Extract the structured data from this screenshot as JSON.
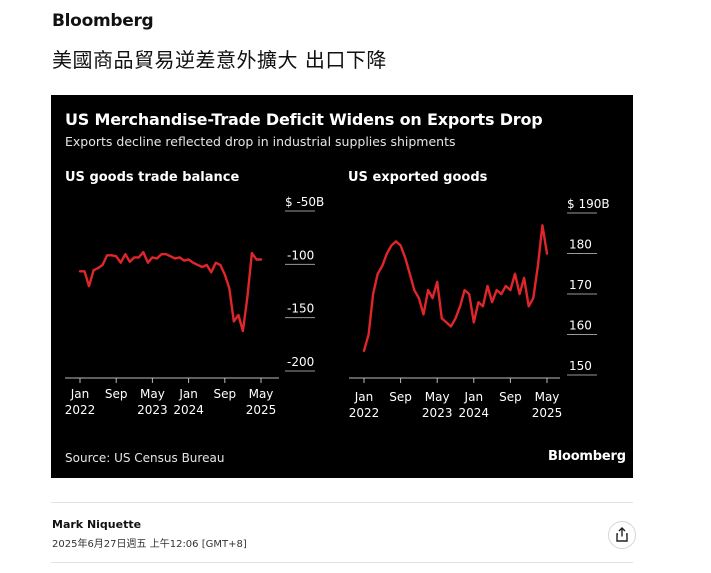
{
  "header": {
    "brand": "Bloomberg",
    "headline": "美國商品貿易逆差意外擴大 出口下降"
  },
  "card": {
    "title": "US Merchandise-Trade Deficit Widens on Exports Drop",
    "subtitle": "Exports decline reflected drop in industrial supplies shipments",
    "source": "Source: US Census Bureau",
    "logo": "Bloomberg"
  },
  "byline": {
    "author": "Mark Niquette",
    "date": "2025年6月27日週五 上午12:06 [GMT+8]"
  },
  "icons": {
    "share": "share-icon"
  },
  "colors": {
    "line": "#e0262a",
    "card_bg": "#000000"
  },
  "chart_data": [
    {
      "type": "line",
      "title": "US goods trade balance",
      "ylim": [
        -200,
        -50
      ],
      "y_ticks": [
        -50,
        -100,
        -150,
        -200
      ],
      "y_tick_labels": [
        "$ -50B",
        "-100",
        "-150",
        "-200"
      ],
      "x_ticks": [
        "2022-01",
        "2022-09",
        "2023-05",
        "2024-01",
        "2024-09",
        "2025-05"
      ],
      "x_tick_labels": [
        [
          "Jan",
          "2022"
        ],
        [
          "Sep",
          ""
        ],
        [
          "May",
          "2023"
        ],
        [
          "Jan",
          "2024"
        ],
        [
          "Sep",
          ""
        ],
        [
          "May",
          "2025"
        ]
      ],
      "grid": false,
      "series": [
        {
          "x": [
            "2022-01",
            "2022-02",
            "2022-03",
            "2022-04",
            "2022-05",
            "2022-06",
            "2022-07",
            "2022-08",
            "2022-09",
            "2022-10",
            "2022-11",
            "2022-12",
            "2023-01",
            "2023-02",
            "2023-03",
            "2023-04",
            "2023-05",
            "2023-06",
            "2023-07",
            "2023-08",
            "2023-09",
            "2023-10",
            "2023-11",
            "2023-12",
            "2024-01",
            "2024-02",
            "2024-03",
            "2024-04",
            "2024-05",
            "2024-06",
            "2024-07",
            "2024-08",
            "2024-09",
            "2024-10",
            "2024-11",
            "2024-12",
            "2025-01",
            "2025-02",
            "2025-03",
            "2025-04",
            "2025-05"
          ],
          "values": [
            -114,
            -114,
            -128,
            -113,
            -111,
            -108,
            -99,
            -99,
            -100,
            -106,
            -98,
            -105,
            -101,
            -101,
            -96,
            -106,
            -101,
            -102,
            -98,
            -98,
            -100,
            -102,
            -101,
            -104,
            -103,
            -106,
            -108,
            -110,
            -108,
            -115,
            -106,
            -108,
            -117,
            -130,
            -161,
            -155,
            -170,
            -138,
            -97,
            -103,
            -103
          ]
        }
      ]
    },
    {
      "type": "line",
      "title": "US exported goods",
      "ylim": [
        150,
        190
      ],
      "y_ticks": [
        190,
        180,
        170,
        160,
        150
      ],
      "y_tick_labels": [
        "$ 190B",
        "180",
        "170",
        "160",
        "150"
      ],
      "x_ticks": [
        "2022-01",
        "2022-09",
        "2023-05",
        "2024-01",
        "2024-09",
        "2025-05"
      ],
      "x_tick_labels": [
        [
          "Jan",
          "2022"
        ],
        [
          "Sep",
          ""
        ],
        [
          "May",
          "2023"
        ],
        [
          "Jan",
          "2024"
        ],
        [
          "Sep",
          ""
        ],
        [
          "May",
          "2025"
        ]
      ],
      "grid": false,
      "series": [
        {
          "x": [
            "2022-01",
            "2022-02",
            "2022-03",
            "2022-04",
            "2022-05",
            "2022-06",
            "2022-07",
            "2022-08",
            "2022-09",
            "2022-10",
            "2022-11",
            "2022-12",
            "2023-01",
            "2023-02",
            "2023-03",
            "2023-04",
            "2023-05",
            "2023-06",
            "2023-07",
            "2023-08",
            "2023-09",
            "2023-10",
            "2023-11",
            "2023-12",
            "2024-01",
            "2024-02",
            "2024-03",
            "2024-04",
            "2024-05",
            "2024-06",
            "2024-07",
            "2024-08",
            "2024-09",
            "2024-10",
            "2024-11",
            "2024-12",
            "2025-01",
            "2025-02",
            "2025-03",
            "2025-04",
            "2025-05"
          ],
          "values": [
            154,
            158,
            168,
            173,
            175,
            178,
            180,
            181,
            180,
            177,
            173,
            169,
            167,
            163,
            169,
            167,
            171,
            162,
            161,
            160,
            162,
            165,
            169,
            168,
            161,
            166,
            165,
            170,
            166,
            169,
            168,
            170,
            169,
            173,
            168,
            172,
            165,
            167,
            175,
            185,
            178
          ]
        }
      ]
    }
  ]
}
